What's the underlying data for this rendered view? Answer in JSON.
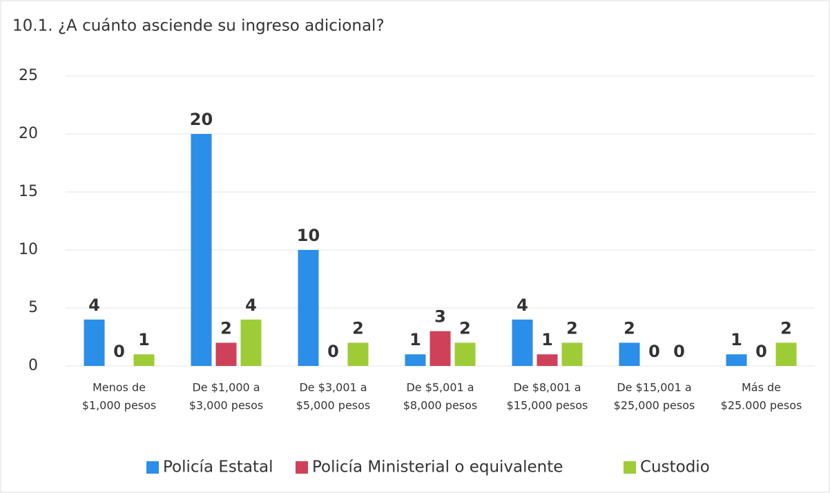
{
  "chart_data": {
    "type": "bar",
    "title": "10.1. ¿A cuánto asciende su ingreso adicional?",
    "categories": [
      [
        "Menos de",
        "$1,000 pesos"
      ],
      [
        "De $1,000 a",
        "$3,000 pesos"
      ],
      [
        "De $3,001 a",
        "$5,000 pesos"
      ],
      [
        "De $5,001 a",
        "$8,000 pesos"
      ],
      [
        "De $8,001 a",
        "$15,000 pesos"
      ],
      [
        "De $15,001 a",
        "$25,000 pesos"
      ],
      [
        "Más de",
        "$25.000 pesos"
      ]
    ],
    "series": [
      {
        "name": "Policía Estatal",
        "color": "#2b8ee8",
        "values": [
          4,
          20,
          10,
          1,
          4,
          2,
          1
        ]
      },
      {
        "name": "Policía Ministerial o equivalente",
        "color": "#cf4159",
        "values": [
          0,
          2,
          0,
          3,
          1,
          0,
          0
        ]
      },
      {
        "name": "Custodio",
        "color": "#9dcc37",
        "values": [
          1,
          4,
          2,
          2,
          2,
          0,
          2
        ]
      }
    ],
    "ylim": [
      0,
      25
    ],
    "yticks": [
      0,
      5,
      10,
      15,
      20,
      25
    ],
    "grid": true,
    "legend": "bottom"
  }
}
